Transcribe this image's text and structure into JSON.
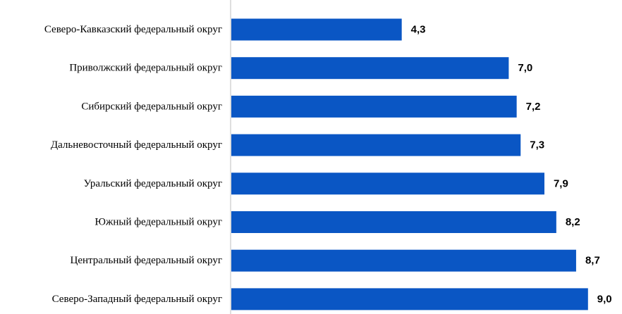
{
  "chart_data": {
    "type": "bar",
    "orientation": "horizontal",
    "categories": [
      "Северо-Кавказский федеральный округ",
      "Приволжский федеральный округ",
      "Сибирский федеральный округ",
      "Дальневосточный федеральный округ",
      "Уральский федеральный округ",
      "Южный федеральный округ",
      "Центральный федеральный округ",
      "Северо-Западный федеральный округ"
    ],
    "values": [
      4.3,
      7.0,
      7.2,
      7.3,
      7.9,
      8.2,
      8.7,
      9.0
    ],
    "value_labels": [
      "4,3",
      "7,0",
      "7,2",
      "7,3",
      "7,9",
      "8,2",
      "8,7",
      "9,0"
    ],
    "title": "",
    "xlabel": "",
    "ylabel": "",
    "xlim": [
      0,
      9.2
    ],
    "grid": false,
    "legend": "none",
    "bar_color": "#0a56c4",
    "axis_color": "#bfbfbf"
  }
}
